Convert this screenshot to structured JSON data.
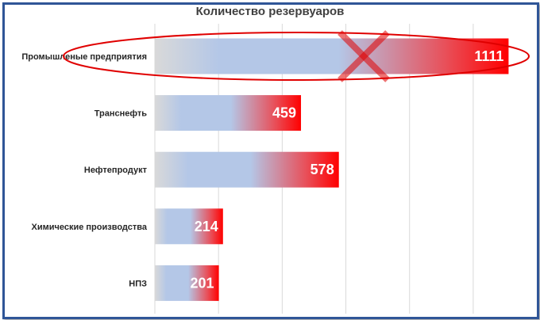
{
  "chart_data": {
    "type": "bar",
    "orientation": "horizontal",
    "title": "Количество резервуаров",
    "categories": [
      "Промышленые предприятия",
      "Транснефть",
      "Нефтепродукт",
      "Химические производства",
      "НПЗ"
    ],
    "values": [
      1111,
      459,
      578,
      214,
      201
    ],
    "xlim": [
      0,
      1100
    ],
    "grid": true,
    "legend": "none",
    "annotations": [
      "ellipse-around-first-bar",
      "red-cross-on-first-bar"
    ]
  },
  "colors": {
    "border": "#2f5597",
    "bar_start": "#b4c7e7",
    "bar_end": "#ff0000",
    "gridline": "#d9d9d9",
    "annotation": "#e00000"
  }
}
